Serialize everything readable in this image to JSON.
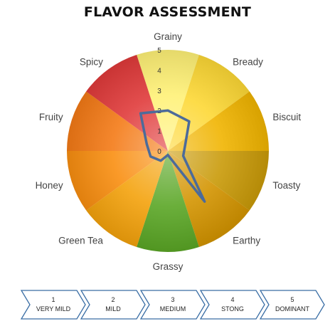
{
  "chart_data": {
    "type": "radar",
    "title": "FLAVOR ASSESSMENT",
    "categories": [
      "Grainy",
      "Bready",
      "Biscuit",
      "Toasty",
      "Earthy",
      "Grassy",
      "Green Tea",
      "Honey",
      "Fruity",
      "Spicy"
    ],
    "values": [
      2.0,
      1.8,
      0.9,
      0.8,
      3.1,
      0.2,
      0.6,
      0.9,
      1.1,
      2.3
    ],
    "rlim": [
      0,
      5
    ],
    "ticks": [
      "0",
      "1",
      "2",
      "3",
      "4",
      "5"
    ],
    "sector_colors": [
      "#fff176",
      "#fdd835",
      "#f0b400",
      "#c99a08",
      "#d39400",
      "#5aa625",
      "#f4a20c",
      "#f98e10",
      "#f47a16",
      "#e03a3a"
    ],
    "line_color": "#4c6b9a",
    "grid": false,
    "legend": "none"
  },
  "scale": [
    {
      "number": "1",
      "label": "VERY MILD"
    },
    {
      "number": "2",
      "label": "MILD"
    },
    {
      "number": "3",
      "label": "MEDIUM"
    },
    {
      "number": "4",
      "label": "STONG"
    },
    {
      "number": "5",
      "label": "DOMINANT"
    }
  ]
}
